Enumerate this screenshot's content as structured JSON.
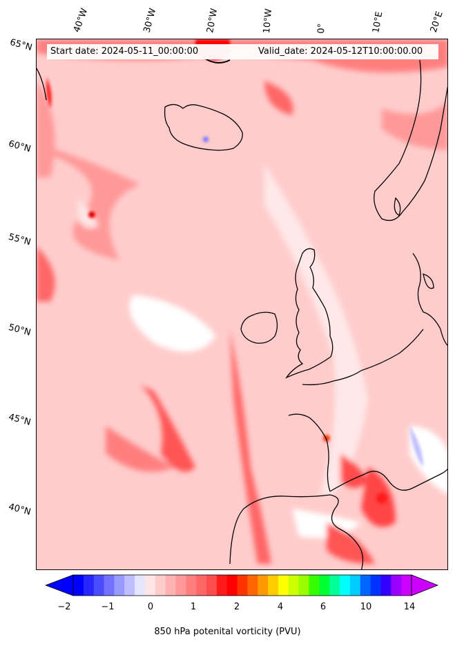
{
  "header": {
    "start_date": "Start date: 2024-05-11_00:00:00",
    "valid_date": "Valid_date: 2024-05-12T10:00:00.00"
  },
  "longitude_labels": [
    "40°W",
    "30°W",
    "20°W",
    "10°W",
    "0°",
    "10°E",
    "20°E"
  ],
  "latitude_labels": [
    "65°N",
    "60°N",
    "55°N",
    "50°N",
    "45°N",
    "40°N"
  ],
  "colorbar": {
    "label": "850 hPa potenital vorticity (PVU)",
    "tick_labels": [
      "−2",
      "−1",
      "0",
      "1",
      "2",
      "4",
      "6",
      "10",
      "14"
    ],
    "colors": [
      "#0000ff",
      "#2626ff",
      "#4c4cff",
      "#7272ff",
      "#9999ff",
      "#bfbfff",
      "#e5e5ff",
      "#ffe5e5",
      "#ffcccc",
      "#ffb2b2",
      "#ff9999",
      "#ff7f7f",
      "#ff6666",
      "#ff4c4c",
      "#ff1a1a",
      "#ff0000",
      "#ff3300",
      "#ff6600",
      "#ff9900",
      "#ffcc00",
      "#ffff00",
      "#ccff00",
      "#99ff00",
      "#33ff00",
      "#00ff33",
      "#00ff99",
      "#00ffff",
      "#00ccff",
      "#0066ff",
      "#0033ff",
      "#3300ff",
      "#9900ff",
      "#cc00ff"
    ],
    "min_arrow_color": "#0000ff",
    "max_arrow_color": "#cc00ff"
  },
  "map": {
    "background_color": "#ffd6d6",
    "coastline_color": "#000000"
  }
}
